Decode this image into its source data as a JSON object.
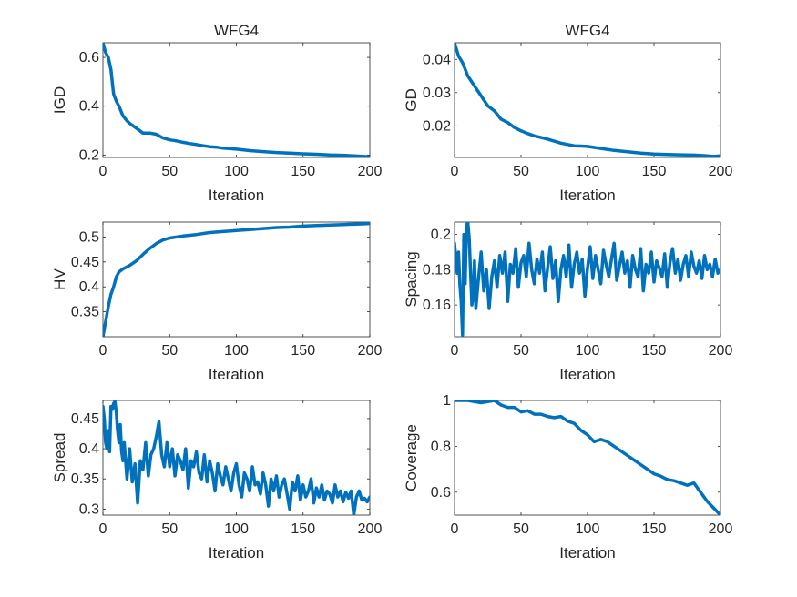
{
  "chart_data": [
    {
      "type": "line",
      "title": "WFG4",
      "xlabel": "Iteration",
      "ylabel": "IGD",
      "xlim": [
        0,
        200
      ],
      "ylim": [
        0.19,
        0.66
      ],
      "xticks": [
        0,
        50,
        100,
        150,
        200
      ],
      "xtick_labels": [
        "0",
        "50",
        "100",
        "150",
        "200"
      ],
      "yticks": [
        0.2,
        0.4,
        0.6
      ],
      "ytick_labels": [
        "0.2",
        "0.4",
        "0.6"
      ],
      "series": [
        {
          "name": "IGD",
          "color": "#0072bd",
          "x": [
            0,
            2,
            4,
            6,
            8,
            10,
            12,
            15,
            18,
            20,
            25,
            30,
            35,
            40,
            45,
            50,
            55,
            60,
            65,
            70,
            75,
            80,
            85,
            90,
            95,
            100,
            110,
            120,
            130,
            140,
            150,
            160,
            170,
            180,
            190,
            200
          ],
          "values": [
            0.66,
            0.62,
            0.6,
            0.55,
            0.45,
            0.42,
            0.4,
            0.36,
            0.34,
            0.33,
            0.31,
            0.29,
            0.29,
            0.285,
            0.27,
            0.262,
            0.258,
            0.252,
            0.247,
            0.243,
            0.238,
            0.234,
            0.232,
            0.228,
            0.226,
            0.224,
            0.218,
            0.214,
            0.21,
            0.208,
            0.205,
            0.203,
            0.2,
            0.199,
            0.196,
            0.193
          ]
        }
      ]
    },
    {
      "type": "line",
      "title": "WFG4",
      "xlabel": "Iteration",
      "ylabel": "GD",
      "xlim": [
        0,
        200
      ],
      "ylim": [
        0.0105,
        0.045
      ],
      "xticks": [
        0,
        50,
        100,
        150,
        200
      ],
      "xtick_labels": [
        "0",
        "50",
        "100",
        "150",
        "200"
      ],
      "yticks": [
        0.02,
        0.03,
        0.04
      ],
      "ytick_labels": [
        "0.02",
        "0.03",
        "0.04"
      ],
      "series": [
        {
          "name": "GD",
          "color": "#0072bd",
          "x": [
            0,
            3,
            6,
            10,
            15,
            20,
            25,
            30,
            35,
            40,
            45,
            50,
            55,
            60,
            65,
            70,
            80,
            90,
            100,
            110,
            120,
            130,
            140,
            150,
            160,
            170,
            180,
            190,
            195,
            200
          ],
          "values": [
            0.045,
            0.041,
            0.039,
            0.035,
            0.032,
            0.029,
            0.026,
            0.0245,
            0.022,
            0.021,
            0.0195,
            0.0185,
            0.0177,
            0.017,
            0.0165,
            0.016,
            0.0148,
            0.014,
            0.0138,
            0.0132,
            0.0126,
            0.0122,
            0.0118,
            0.0115,
            0.0114,
            0.0113,
            0.0112,
            0.011,
            0.0108,
            0.011
          ]
        }
      ]
    },
    {
      "type": "line",
      "title": "",
      "xlabel": "Iteration",
      "ylabel": "HV",
      "xlim": [
        0,
        200
      ],
      "ylim": [
        0.3,
        0.53
      ],
      "xticks": [
        0,
        50,
        100,
        150,
        200
      ],
      "xtick_labels": [
        "0",
        "50",
        "100",
        "150",
        "200"
      ],
      "yticks": [
        0.35,
        0.4,
        0.45,
        0.5
      ],
      "ytick_labels": [
        "0.35",
        "0.4",
        "0.45",
        "0.5"
      ],
      "series": [
        {
          "name": "HV",
          "color": "#0072bd",
          "x": [
            0,
            2,
            4,
            6,
            8,
            10,
            12,
            15,
            20,
            25,
            30,
            35,
            40,
            45,
            50,
            60,
            70,
            80,
            90,
            100,
            110,
            120,
            130,
            140,
            150,
            160,
            170,
            180,
            190,
            200
          ],
          "values": [
            0.3,
            0.33,
            0.36,
            0.385,
            0.4,
            0.42,
            0.43,
            0.436,
            0.443,
            0.452,
            0.465,
            0.477,
            0.487,
            0.494,
            0.498,
            0.502,
            0.505,
            0.509,
            0.511,
            0.513,
            0.515,
            0.517,
            0.519,
            0.52,
            0.522,
            0.523,
            0.524,
            0.525,
            0.526,
            0.527
          ]
        }
      ]
    },
    {
      "type": "line",
      "title": "",
      "xlabel": "Iteration",
      "ylabel": "Spacing",
      "xlim": [
        0,
        200
      ],
      "ylim": [
        0.142,
        0.207
      ],
      "xticks": [
        0,
        50,
        100,
        150,
        200
      ],
      "xtick_labels": [
        "0",
        "50",
        "100",
        "150",
        "200"
      ],
      "yticks": [
        0.16,
        0.18,
        0.2
      ],
      "ytick_labels": [
        "0.16",
        "0.18",
        "0.2"
      ],
      "series": [
        {
          "name": "Spacing",
          "color": "#0072bd",
          "x": [
            0,
            2,
            3,
            4,
            5,
            6,
            7,
            8,
            9,
            10,
            11,
            12,
            13,
            14,
            15,
            16,
            18,
            20,
            22,
            24,
            26,
            28,
            30,
            32,
            34,
            36,
            38,
            40,
            42,
            44,
            46,
            48,
            50,
            52,
            54,
            56,
            58,
            60,
            62,
            64,
            66,
            68,
            70,
            72,
            74,
            76,
            78,
            80,
            82,
            84,
            86,
            88,
            90,
            92,
            94,
            96,
            98,
            100,
            102,
            104,
            106,
            108,
            110,
            112,
            114,
            116,
            118,
            120,
            122,
            124,
            126,
            128,
            130,
            132,
            134,
            136,
            138,
            140,
            142,
            144,
            146,
            148,
            150,
            152,
            154,
            156,
            158,
            160,
            162,
            164,
            166,
            168,
            170,
            172,
            174,
            176,
            178,
            180,
            182,
            184,
            186,
            188,
            190,
            192,
            194,
            196,
            198,
            200
          ],
          "values": [
            0.195,
            0.178,
            0.19,
            0.172,
            0.162,
            0.143,
            0.2,
            0.172,
            0.205,
            0.207,
            0.198,
            0.18,
            0.16,
            0.165,
            0.185,
            0.158,
            0.175,
            0.19,
            0.168,
            0.18,
            0.158,
            0.176,
            0.185,
            0.17,
            0.188,
            0.178,
            0.19,
            0.162,
            0.183,
            0.178,
            0.192,
            0.17,
            0.184,
            0.188,
            0.176,
            0.195,
            0.18,
            0.172,
            0.186,
            0.178,
            0.19,
            0.168,
            0.181,
            0.193,
            0.175,
            0.185,
            0.162,
            0.18,
            0.188,
            0.176,
            0.194,
            0.17,
            0.183,
            0.19,
            0.178,
            0.186,
            0.165,
            0.181,
            0.193,
            0.175,
            0.188,
            0.18,
            0.172,
            0.191,
            0.183,
            0.176,
            0.186,
            0.195,
            0.174,
            0.182,
            0.19,
            0.178,
            0.185,
            0.17,
            0.188,
            0.18,
            0.176,
            0.192,
            0.168,
            0.183,
            0.178,
            0.19,
            0.173,
            0.185,
            0.181,
            0.176,
            0.189,
            0.17,
            0.184,
            0.192,
            0.178,
            0.186,
            0.174,
            0.183,
            0.188,
            0.176,
            0.19,
            0.182,
            0.178,
            0.185,
            0.175,
            0.188,
            0.18,
            0.183,
            0.176,
            0.186,
            0.178,
            0.18
          ]
        }
      ]
    },
    {
      "type": "line",
      "title": "",
      "xlabel": "Iteration",
      "ylabel": "Spread",
      "xlim": [
        0,
        200
      ],
      "ylim": [
        0.29,
        0.48
      ],
      "xticks": [
        0,
        50,
        100,
        150,
        200
      ],
      "xtick_labels": [
        "0",
        "50",
        "100",
        "150",
        "200"
      ],
      "yticks": [
        0.3,
        0.35,
        0.4,
        0.45
      ],
      "ytick_labels": [
        "0.3",
        "0.35",
        "0.4",
        "0.45"
      ],
      "series": [
        {
          "name": "Spread",
          "color": "#0072bd",
          "x": [
            0,
            1,
            2,
            3,
            4,
            5,
            6,
            7,
            8,
            9,
            10,
            11,
            12,
            13,
            14,
            15,
            16,
            18,
            20,
            22,
            24,
            26,
            28,
            30,
            32,
            34,
            36,
            38,
            40,
            42,
            44,
            46,
            48,
            50,
            52,
            54,
            56,
            58,
            60,
            62,
            64,
            66,
            68,
            70,
            72,
            74,
            76,
            78,
            80,
            82,
            84,
            86,
            88,
            90,
            92,
            94,
            96,
            98,
            100,
            102,
            104,
            106,
            108,
            110,
            112,
            114,
            116,
            118,
            120,
            122,
            124,
            126,
            128,
            130,
            132,
            134,
            136,
            138,
            140,
            142,
            144,
            146,
            148,
            150,
            152,
            154,
            156,
            158,
            160,
            162,
            164,
            166,
            168,
            170,
            172,
            174,
            176,
            178,
            180,
            182,
            184,
            186,
            188,
            190,
            192,
            194,
            196,
            198,
            200
          ],
          "values": [
            0.47,
            0.45,
            0.41,
            0.4,
            0.43,
            0.395,
            0.47,
            0.465,
            0.475,
            0.478,
            0.46,
            0.43,
            0.41,
            0.44,
            0.395,
            0.38,
            0.41,
            0.35,
            0.4,
            0.345,
            0.375,
            0.31,
            0.38,
            0.365,
            0.41,
            0.355,
            0.39,
            0.4,
            0.42,
            0.445,
            0.39,
            0.37,
            0.41,
            0.37,
            0.4,
            0.355,
            0.39,
            0.38,
            0.365,
            0.4,
            0.335,
            0.38,
            0.37,
            0.395,
            0.36,
            0.35,
            0.39,
            0.345,
            0.38,
            0.36,
            0.33,
            0.375,
            0.355,
            0.34,
            0.37,
            0.35,
            0.33,
            0.36,
            0.375,
            0.34,
            0.32,
            0.36,
            0.35,
            0.33,
            0.37,
            0.34,
            0.345,
            0.325,
            0.36,
            0.34,
            0.305,
            0.35,
            0.33,
            0.355,
            0.32,
            0.34,
            0.35,
            0.325,
            0.3,
            0.345,
            0.33,
            0.355,
            0.315,
            0.34,
            0.32,
            0.33,
            0.35,
            0.31,
            0.335,
            0.32,
            0.34,
            0.315,
            0.33,
            0.325,
            0.31,
            0.34,
            0.32,
            0.33,
            0.312,
            0.328,
            0.318,
            0.33,
            0.29,
            0.32,
            0.33,
            0.315,
            0.318,
            0.312,
            0.32
          ]
        }
      ]
    },
    {
      "type": "line",
      "title": "",
      "xlabel": "Iteration",
      "ylabel": "Coverage",
      "xlim": [
        0,
        200
      ],
      "ylim": [
        0.5,
        1.0
      ],
      "xticks": [
        0,
        50,
        100,
        150,
        200
      ],
      "xtick_labels": [
        "0",
        "50",
        "100",
        "150",
        "200"
      ],
      "yticks": [
        0.6,
        0.8,
        1.0
      ],
      "ytick_labels": [
        "0.6",
        "0.8",
        "1"
      ],
      "series": [
        {
          "name": "Coverage",
          "color": "#0072bd",
          "x": [
            0,
            10,
            20,
            25,
            30,
            35,
            40,
            45,
            50,
            55,
            60,
            65,
            70,
            75,
            80,
            85,
            90,
            95,
            100,
            105,
            110,
            115,
            120,
            125,
            130,
            135,
            140,
            145,
            150,
            155,
            160,
            165,
            170,
            175,
            180,
            185,
            190,
            195,
            200
          ],
          "values": [
            1.0,
            1.0,
            0.99,
            0.995,
            1.0,
            0.98,
            0.97,
            0.97,
            0.95,
            0.955,
            0.94,
            0.94,
            0.93,
            0.925,
            0.93,
            0.91,
            0.9,
            0.87,
            0.85,
            0.82,
            0.83,
            0.82,
            0.8,
            0.78,
            0.76,
            0.74,
            0.72,
            0.7,
            0.68,
            0.67,
            0.655,
            0.65,
            0.64,
            0.63,
            0.64,
            0.6,
            0.56,
            0.53,
            0.5
          ]
        }
      ]
    }
  ]
}
